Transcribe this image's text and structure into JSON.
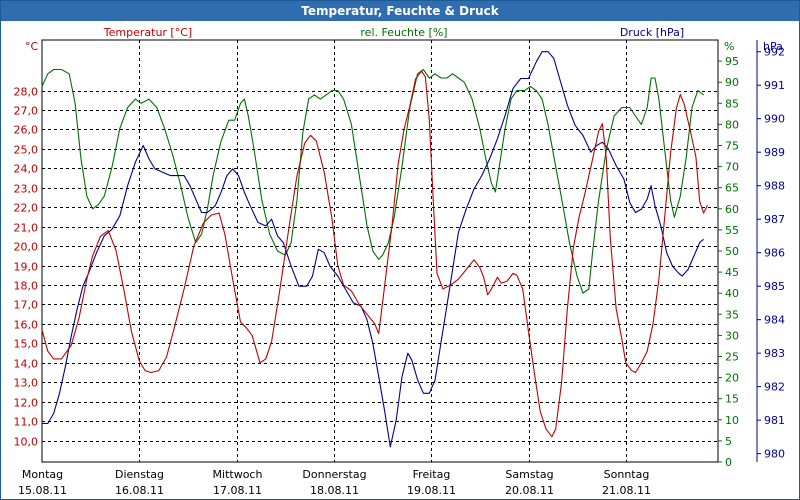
{
  "chart_data": {
    "type": "line",
    "title": "Temperatur, Feuchte & Druck",
    "series_labels": {
      "temp": "Temperatur [°C]",
      "hum": "rel. Feuchte [%]",
      "press": "Druck [hPa]"
    },
    "axis_units": {
      "left": "°C",
      "right_hum": "%",
      "right_press": "hPa"
    },
    "colors": {
      "temp": "#c00000",
      "hum": "#007000",
      "press": "#000090",
      "title_bg": "#2f6db0",
      "grid": "#000000"
    },
    "temp_axis": {
      "min": 8.9,
      "max": 30.6,
      "ticks": [
        10.0,
        11.0,
        12.0,
        13.0,
        14.0,
        15.0,
        16.0,
        17.0,
        18.0,
        19.0,
        20.0,
        21.0,
        22.0,
        23.0,
        24.0,
        25.0,
        26.0,
        27.0,
        28.0
      ],
      "tick_labels": [
        "10,0",
        "11,0",
        "12,0",
        "13,0",
        "14,0",
        "15,0",
        "16,0",
        "17,0",
        "18,0",
        "19,0",
        "20,0",
        "21,0",
        "22,0",
        "23,0",
        "24,0",
        "25,0",
        "26,0",
        "27,0",
        "28,0"
      ]
    },
    "hum_axis": {
      "min": 0,
      "max": 100,
      "ticks": [
        0,
        5,
        10,
        15,
        20,
        25,
        30,
        35,
        40,
        45,
        50,
        55,
        60,
        65,
        70,
        75,
        80,
        85,
        90,
        95
      ],
      "tick_labels": [
        "0",
        "5",
        "10",
        "15",
        "20",
        "25",
        "30",
        "35",
        "40",
        "45",
        "50",
        "55",
        "60",
        "65",
        "70",
        "75",
        "80",
        "85",
        "90",
        "95"
      ]
    },
    "press_axis": {
      "min": 979.75,
      "max": 992.35,
      "ticks": [
        980,
        981,
        982,
        983,
        984,
        985,
        986,
        987,
        988,
        989,
        990,
        991,
        992
      ],
      "tick_labels": [
        "980",
        "981",
        "982",
        "983",
        "984",
        "985",
        "986",
        "987",
        "988",
        "989",
        "990",
        "991",
        "992"
      ]
    },
    "days": [
      {
        "day": "Montag",
        "date": "15.08.11"
      },
      {
        "day": "Dienstag",
        "date": "16.08.11"
      },
      {
        "day": "Mittwoch",
        "date": "17.08.11"
      },
      {
        "day": "Donnerstag",
        "date": "18.08.11"
      },
      {
        "day": "Freitag",
        "date": "19.08.11"
      },
      {
        "day": "Samstag",
        "date": "20.08.11"
      },
      {
        "day": "Sonntag",
        "date": "21.08.11"
      }
    ],
    "x_range_days": [
      0,
      7.12
    ],
    "temperature": [
      [
        0.0,
        15.7
      ],
      [
        0.06,
        14.6
      ],
      [
        0.12,
        14.2
      ],
      [
        0.2,
        14.2
      ],
      [
        0.3,
        14.9
      ],
      [
        0.38,
        16.3
      ],
      [
        0.46,
        18.3
      ],
      [
        0.52,
        19.5
      ],
      [
        0.6,
        20.5
      ],
      [
        0.68,
        20.8
      ],
      [
        0.76,
        19.8
      ],
      [
        0.84,
        17.8
      ],
      [
        0.92,
        15.6
      ],
      [
        1.0,
        14.1
      ],
      [
        1.06,
        13.6
      ],
      [
        1.12,
        13.5
      ],
      [
        1.2,
        13.6
      ],
      [
        1.28,
        14.3
      ],
      [
        1.36,
        15.8
      ],
      [
        1.46,
        17.8
      ],
      [
        1.56,
        20.0
      ],
      [
        1.66,
        21.2
      ],
      [
        1.74,
        21.6
      ],
      [
        1.82,
        21.7
      ],
      [
        1.88,
        20.6
      ],
      [
        1.96,
        18.3
      ],
      [
        2.04,
        16.1
      ],
      [
        2.1,
        15.8
      ],
      [
        2.16,
        15.4
      ],
      [
        2.24,
        14.0
      ],
      [
        2.3,
        14.2
      ],
      [
        2.36,
        15.1
      ],
      [
        2.44,
        17.6
      ],
      [
        2.54,
        21.0
      ],
      [
        2.62,
        23.6
      ],
      [
        2.7,
        25.3
      ],
      [
        2.76,
        25.7
      ],
      [
        2.82,
        25.4
      ],
      [
        2.9,
        23.8
      ],
      [
        2.98,
        21.4
      ],
      [
        3.04,
        19.0
      ],
      [
        3.1,
        18.0
      ],
      [
        3.18,
        17.7
      ],
      [
        3.26,
        17.0
      ],
      [
        3.34,
        16.5
      ],
      [
        3.42,
        16.0
      ],
      [
        3.46,
        15.5
      ],
      [
        3.52,
        17.9
      ],
      [
        3.6,
        21.2
      ],
      [
        3.66,
        24.2
      ],
      [
        3.72,
        26.0
      ],
      [
        3.78,
        27.2
      ],
      [
        3.84,
        28.6
      ],
      [
        3.9,
        29.0
      ],
      [
        3.94,
        28.7
      ],
      [
        3.98,
        26.5
      ],
      [
        4.02,
        22.5
      ],
      [
        4.06,
        18.6
      ],
      [
        4.12,
        17.8
      ],
      [
        4.2,
        18.0
      ],
      [
        4.28,
        18.3
      ],
      [
        4.36,
        18.8
      ],
      [
        4.44,
        19.3
      ],
      [
        4.5,
        18.9
      ],
      [
        4.54,
        18.4
      ],
      [
        4.58,
        17.5
      ],
      [
        4.62,
        17.8
      ],
      [
        4.68,
        18.4
      ],
      [
        4.72,
        18.1
      ],
      [
        4.78,
        18.2
      ],
      [
        4.84,
        18.6
      ],
      [
        4.88,
        18.5
      ],
      [
        4.94,
        17.8
      ],
      [
        5.0,
        15.6
      ],
      [
        5.06,
        13.5
      ],
      [
        5.12,
        11.5
      ],
      [
        5.18,
        10.6
      ],
      [
        5.24,
        10.2
      ],
      [
        5.28,
        10.6
      ],
      [
        5.34,
        13.0
      ],
      [
        5.4,
        16.8
      ],
      [
        5.46,
        19.9
      ],
      [
        5.52,
        21.5
      ],
      [
        5.58,
        22.7
      ],
      [
        5.66,
        24.5
      ],
      [
        5.72,
        25.9
      ],
      [
        5.76,
        26.3
      ],
      [
        5.8,
        24.5
      ],
      [
        5.84,
        20.5
      ],
      [
        5.9,
        16.8
      ],
      [
        5.96,
        15.2
      ],
      [
        6.0,
        14.0
      ],
      [
        6.06,
        13.6
      ],
      [
        6.1,
        13.5
      ],
      [
        6.16,
        14.0
      ],
      [
        6.22,
        14.6
      ],
      [
        6.28,
        16.0
      ],
      [
        6.34,
        18.3
      ],
      [
        6.4,
        21.5
      ],
      [
        6.46,
        24.8
      ],
      [
        6.52,
        27.1
      ],
      [
        6.56,
        27.8
      ],
      [
        6.6,
        27.3
      ],
      [
        6.66,
        26.0
      ],
      [
        6.72,
        24.6
      ],
      [
        6.76,
        22.3
      ],
      [
        6.8,
        21.7
      ],
      [
        6.84,
        22.1
      ]
    ],
    "humidity": [
      [
        0.0,
        89
      ],
      [
        0.06,
        92
      ],
      [
        0.12,
        93
      ],
      [
        0.2,
        93
      ],
      [
        0.28,
        92
      ],
      [
        0.34,
        85
      ],
      [
        0.4,
        72
      ],
      [
        0.46,
        63
      ],
      [
        0.52,
        60
      ],
      [
        0.58,
        61
      ],
      [
        0.64,
        63
      ],
      [
        0.72,
        70
      ],
      [
        0.8,
        79
      ],
      [
        0.88,
        84
      ],
      [
        0.96,
        86
      ],
      [
        1.02,
        85
      ],
      [
        1.1,
        86
      ],
      [
        1.18,
        84
      ],
      [
        1.26,
        79
      ],
      [
        1.34,
        73
      ],
      [
        1.42,
        66
      ],
      [
        1.5,
        58
      ],
      [
        1.58,
        52
      ],
      [
        1.64,
        54
      ],
      [
        1.7,
        60
      ],
      [
        1.76,
        68
      ],
      [
        1.84,
        76
      ],
      [
        1.92,
        81
      ],
      [
        1.98,
        81
      ],
      [
        2.04,
        85
      ],
      [
        2.08,
        86
      ],
      [
        2.12,
        82
      ],
      [
        2.18,
        74
      ],
      [
        2.26,
        62
      ],
      [
        2.34,
        54
      ],
      [
        2.42,
        50
      ],
      [
        2.5,
        49
      ],
      [
        2.56,
        52
      ],
      [
        2.62,
        62
      ],
      [
        2.68,
        78
      ],
      [
        2.74,
        86
      ],
      [
        2.8,
        87
      ],
      [
        2.86,
        86
      ],
      [
        2.92,
        87
      ],
      [
        2.98,
        88
      ],
      [
        3.04,
        88
      ],
      [
        3.1,
        86
      ],
      [
        3.18,
        80
      ],
      [
        3.26,
        68
      ],
      [
        3.34,
        56
      ],
      [
        3.4,
        50
      ],
      [
        3.46,
        48
      ],
      [
        3.5,
        49
      ],
      [
        3.56,
        52
      ],
      [
        3.62,
        58
      ],
      [
        3.7,
        70
      ],
      [
        3.78,
        84
      ],
      [
        3.86,
        92
      ],
      [
        3.92,
        93
      ],
      [
        3.98,
        91
      ],
      [
        4.04,
        92
      ],
      [
        4.1,
        91
      ],
      [
        4.16,
        91
      ],
      [
        4.22,
        92
      ],
      [
        4.28,
        91
      ],
      [
        4.34,
        90
      ],
      [
        4.42,
        86
      ],
      [
        4.5,
        79
      ],
      [
        4.56,
        72
      ],
      [
        4.62,
        66
      ],
      [
        4.66,
        64
      ],
      [
        4.7,
        70
      ],
      [
        4.76,
        79
      ],
      [
        4.82,
        86
      ],
      [
        4.88,
        88
      ],
      [
        4.96,
        88
      ],
      [
        5.02,
        89
      ],
      [
        5.08,
        88
      ],
      [
        5.14,
        86
      ],
      [
        5.2,
        80
      ],
      [
        5.28,
        70
      ],
      [
        5.36,
        60
      ],
      [
        5.42,
        52
      ],
      [
        5.5,
        44
      ],
      [
        5.56,
        40
      ],
      [
        5.62,
        41
      ],
      [
        5.66,
        50
      ],
      [
        5.72,
        62
      ],
      [
        5.8,
        74
      ],
      [
        5.88,
        82
      ],
      [
        5.96,
        84
      ],
      [
        6.04,
        84
      ],
      [
        6.1,
        82
      ],
      [
        6.16,
        80
      ],
      [
        6.22,
        84
      ],
      [
        6.26,
        91
      ],
      [
        6.3,
        91
      ],
      [
        6.34,
        86
      ],
      [
        6.4,
        74
      ],
      [
        6.46,
        62
      ],
      [
        6.5,
        58
      ],
      [
        6.56,
        63
      ],
      [
        6.62,
        72
      ],
      [
        6.68,
        84
      ],
      [
        6.74,
        88
      ],
      [
        6.8,
        87
      ]
    ],
    "pressure": [
      [
        0.0,
        980.9
      ],
      [
        0.06,
        980.9
      ],
      [
        0.12,
        981.2
      ],
      [
        0.18,
        981.8
      ],
      [
        0.24,
        982.6
      ],
      [
        0.3,
        983.5
      ],
      [
        0.36,
        984.3
      ],
      [
        0.42,
        985.0
      ],
      [
        0.48,
        985.4
      ],
      [
        0.56,
        986.0
      ],
      [
        0.64,
        986.5
      ],
      [
        0.72,
        986.7
      ],
      [
        0.8,
        987.1
      ],
      [
        0.88,
        988.0
      ],
      [
        0.96,
        988.7
      ],
      [
        1.04,
        989.2
      ],
      [
        1.1,
        988.8
      ],
      [
        1.16,
        988.5
      ],
      [
        1.24,
        988.4
      ],
      [
        1.32,
        988.3
      ],
      [
        1.4,
        988.3
      ],
      [
        1.46,
        988.3
      ],
      [
        1.52,
        988.0
      ],
      [
        1.58,
        987.6
      ],
      [
        1.64,
        987.2
      ],
      [
        1.7,
        987.2
      ],
      [
        1.78,
        987.4
      ],
      [
        1.84,
        987.8
      ],
      [
        1.9,
        988.3
      ],
      [
        1.96,
        988.5
      ],
      [
        2.02,
        988.3
      ],
      [
        2.08,
        987.8
      ],
      [
        2.14,
        987.4
      ],
      [
        2.22,
        986.9
      ],
      [
        2.3,
        986.8
      ],
      [
        2.36,
        987.0
      ],
      [
        2.42,
        986.5
      ],
      [
        2.48,
        986.3
      ],
      [
        2.56,
        985.6
      ],
      [
        2.64,
        985.0
      ],
      [
        2.72,
        985.0
      ],
      [
        2.78,
        985.3
      ],
      [
        2.84,
        986.1
      ],
      [
        2.9,
        986.0
      ],
      [
        2.96,
        985.6
      ],
      [
        3.04,
        985.3
      ],
      [
        3.12,
        984.9
      ],
      [
        3.2,
        984.5
      ],
      [
        3.28,
        984.4
      ],
      [
        3.34,
        984.0
      ],
      [
        3.4,
        983.3
      ],
      [
        3.46,
        982.3
      ],
      [
        3.52,
        981.3
      ],
      [
        3.58,
        980.2
      ],
      [
        3.64,
        981.0
      ],
      [
        3.7,
        982.3
      ],
      [
        3.76,
        983.0
      ],
      [
        3.8,
        982.8
      ],
      [
        3.86,
        982.2
      ],
      [
        3.92,
        981.8
      ],
      [
        3.98,
        981.8
      ],
      [
        4.04,
        982.2
      ],
      [
        4.1,
        983.3
      ],
      [
        4.16,
        984.4
      ],
      [
        4.22,
        985.5
      ],
      [
        4.28,
        986.6
      ],
      [
        4.36,
        987.3
      ],
      [
        4.44,
        987.9
      ],
      [
        4.52,
        988.3
      ],
      [
        4.6,
        988.8
      ],
      [
        4.68,
        989.4
      ],
      [
        4.76,
        990.1
      ],
      [
        4.84,
        990.9
      ],
      [
        4.92,
        991.2
      ],
      [
        5.0,
        991.2
      ],
      [
        5.08,
        991.7
      ],
      [
        5.14,
        992.0
      ],
      [
        5.2,
        992.0
      ],
      [
        5.26,
        991.8
      ],
      [
        5.32,
        991.2
      ],
      [
        5.4,
        990.4
      ],
      [
        5.48,
        989.8
      ],
      [
        5.56,
        989.5
      ],
      [
        5.64,
        989.0
      ],
      [
        5.7,
        989.2
      ],
      [
        5.76,
        989.3
      ],
      [
        5.82,
        989.1
      ],
      [
        5.9,
        988.6
      ],
      [
        5.98,
        988.2
      ],
      [
        6.04,
        987.5
      ],
      [
        6.1,
        987.2
      ],
      [
        6.16,
        987.3
      ],
      [
        6.22,
        987.6
      ],
      [
        6.26,
        988.0
      ],
      [
        6.3,
        987.4
      ],
      [
        6.36,
        986.8
      ],
      [
        6.42,
        986.0
      ],
      [
        6.48,
        985.6
      ],
      [
        6.54,
        985.4
      ],
      [
        6.58,
        985.3
      ],
      [
        6.64,
        985.5
      ],
      [
        6.7,
        985.9
      ],
      [
        6.76,
        986.3
      ],
      [
        6.8,
        986.4
      ]
    ]
  }
}
